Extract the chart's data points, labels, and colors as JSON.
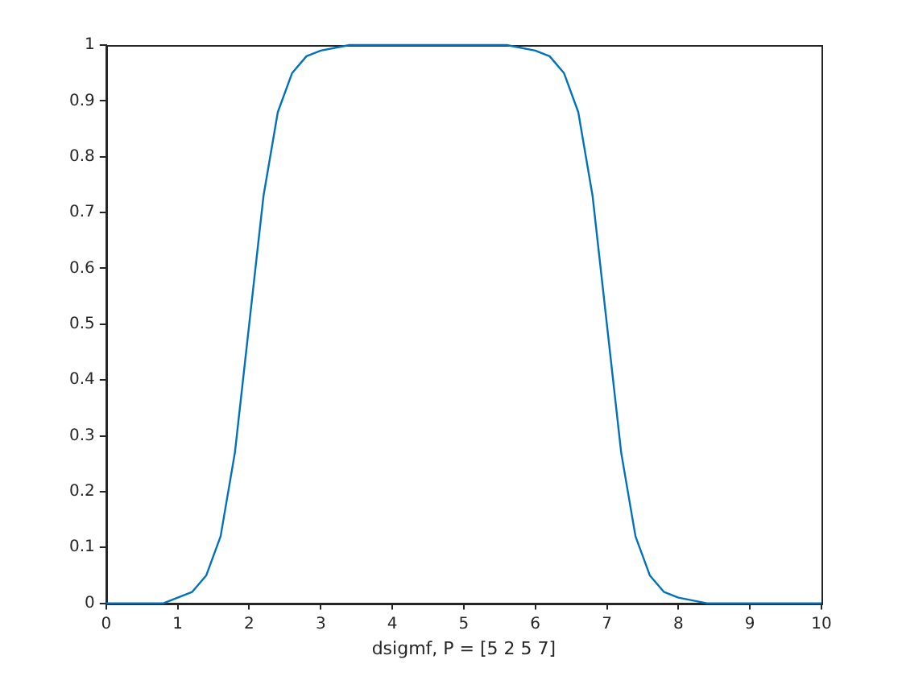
{
  "chart_data": {
    "type": "line",
    "xlabel": "dsigmf, P = [5 2 5 7]",
    "x": [
      0,
      0.4,
      0.8,
      1,
      1.2,
      1.4,
      1.6,
      1.8,
      2,
      2.2,
      2.4,
      2.6,
      2.8,
      3,
      3.4,
      4,
      5,
      5.6,
      6,
      6.2,
      6.4,
      6.6,
      6.8,
      7,
      7.2,
      7.4,
      7.6,
      7.8,
      8,
      8.4,
      9,
      10
    ],
    "series": [
      {
        "color": "#0072bd",
        "values": [
          0,
          0,
          0,
          0.01,
          0.02,
          0.05,
          0.12,
          0.27,
          0.5,
          0.73,
          0.88,
          0.95,
          0.98,
          0.99,
          1,
          1,
          1,
          1,
          0.99,
          0.98,
          0.95,
          0.88,
          0.73,
          0.5,
          0.27,
          0.12,
          0.05,
          0.02,
          0.01,
          0,
          0,
          0
        ]
      }
    ],
    "xlim": [
      0,
      10
    ],
    "xticks": [
      0,
      1,
      2,
      3,
      4,
      5,
      6,
      7,
      8,
      9,
      10
    ],
    "ylim": [
      0,
      1
    ],
    "yticks": [
      0,
      0.1,
      0.2,
      0.3,
      0.4,
      0.5,
      0.6,
      0.7,
      0.8,
      0.9,
      1
    ],
    "grid": false,
    "legend": false,
    "marker": "none",
    "line_style": "solid"
  }
}
